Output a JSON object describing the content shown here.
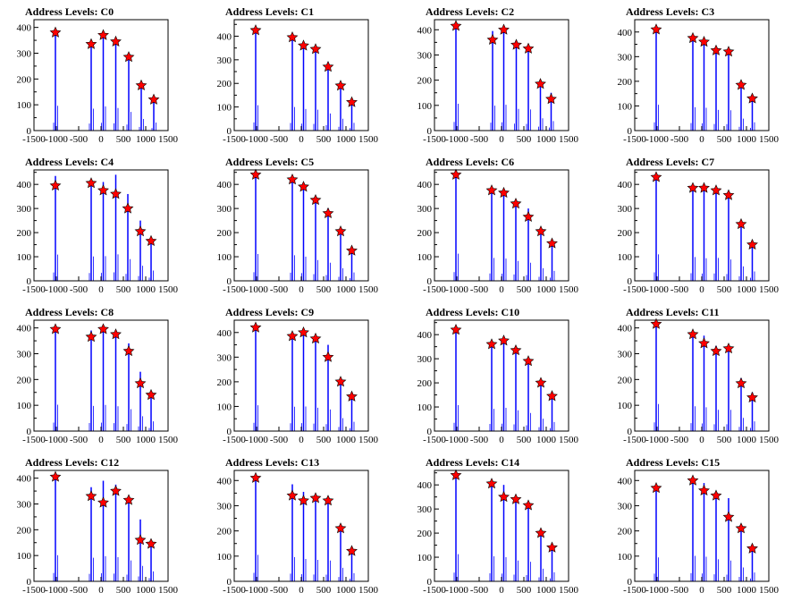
{
  "figure": {
    "xlim": [
      -1500,
      1500
    ],
    "x_ticks": [
      -1500,
      -1000,
      -500,
      0,
      500,
      1000,
      1500
    ],
    "x_tick_labels": [
      "-1500",
      "-1000",
      "-500",
      "0",
      "500",
      "1000",
      "1500"
    ],
    "colors": {
      "histogram": "#0000ff",
      "marker": "#ff0000",
      "frame": "#000000"
    },
    "marker_shape": "star-icon"
  },
  "chart_data": [
    {
      "type": "bar",
      "title": "Address Levels: C0",
      "ylim": [
        0,
        430
      ],
      "yticks": [
        0,
        100,
        200,
        300,
        400
      ],
      "x": [
        -1020,
        -220,
        50,
        330,
        620,
        900,
        1180
      ],
      "peaks": [
        385,
        340,
        375,
        350,
        290,
        180,
        125
      ],
      "markers": [
        380,
        335,
        370,
        345,
        285,
        175,
        120
      ]
    },
    {
      "type": "bar",
      "title": "Address Levels: C1",
      "ylim": [
        0,
        470
      ],
      "yticks": [
        0,
        100,
        200,
        300,
        400
      ],
      "x": [
        -1020,
        -200,
        50,
        320,
        600,
        880,
        1130
      ],
      "peaks": [
        430,
        400,
        365,
        355,
        290,
        200,
        130
      ],
      "markers": [
        425,
        395,
        360,
        345,
        270,
        190,
        120
      ]
    },
    {
      "type": "bar",
      "title": "Address Levels: C2",
      "ylim": [
        0,
        440
      ],
      "yticks": [
        0,
        100,
        200,
        300,
        400
      ],
      "x": [
        -1020,
        -200,
        50,
        330,
        600,
        870,
        1110
      ],
      "peaks": [
        425,
        395,
        410,
        345,
        335,
        195,
        150
      ],
      "markers": [
        415,
        360,
        400,
        340,
        325,
        185,
        125
      ]
    },
    {
      "type": "bar",
      "title": "Address Levels: C3",
      "ylim": [
        0,
        450
      ],
      "yticks": [
        0,
        100,
        200,
        300,
        400
      ],
      "x": [
        -1020,
        -200,
        50,
        320,
        600,
        880,
        1130
      ],
      "peaks": [
        420,
        380,
        370,
        335,
        330,
        195,
        135
      ],
      "markers": [
        410,
        375,
        360,
        325,
        320,
        185,
        130
      ]
    },
    {
      "type": "bar",
      "title": "Address Levels: C4",
      "ylim": [
        0,
        460
      ],
      "yticks": [
        0,
        100,
        200,
        300,
        400
      ],
      "x": [
        -1020,
        -220,
        50,
        330,
        600,
        880,
        1120
      ],
      "peaks": [
        435,
        405,
        410,
        440,
        360,
        250,
        170
      ],
      "markers": [
        395,
        405,
        375,
        360,
        300,
        205,
        165
      ]
    },
    {
      "type": "bar",
      "title": "Address Levels: C5",
      "ylim": [
        0,
        460
      ],
      "yticks": [
        0,
        100,
        200,
        300,
        400
      ],
      "x": [
        -1020,
        -200,
        50,
        320,
        600,
        880,
        1130
      ],
      "peaks": [
        445,
        425,
        400,
        345,
        300,
        210,
        140
      ],
      "markers": [
        440,
        420,
        390,
        335,
        280,
        205,
        125
      ]
    },
    {
      "type": "bar",
      "title": "Address Levels: C6",
      "ylim": [
        0,
        460
      ],
      "yticks": [
        0,
        100,
        200,
        300,
        400
      ],
      "x": [
        -1020,
        -220,
        50,
        320,
        600,
        880,
        1130
      ],
      "peaks": [
        450,
        380,
        370,
        330,
        300,
        210,
        165
      ],
      "markers": [
        440,
        375,
        365,
        320,
        265,
        205,
        155
      ]
    },
    {
      "type": "bar",
      "title": "Address Levels: C7",
      "ylim": [
        0,
        460
      ],
      "yticks": [
        0,
        100,
        200,
        300,
        400
      ],
      "x": [
        -1020,
        -200,
        50,
        320,
        600,
        880,
        1130
      ],
      "peaks": [
        440,
        395,
        375,
        380,
        355,
        240,
        155
      ],
      "markers": [
        430,
        385,
        385,
        375,
        355,
        235,
        150
      ]
    },
    {
      "type": "bar",
      "title": "Address Levels: C8",
      "ylim": [
        0,
        430
      ],
      "yticks": [
        0,
        100,
        200,
        300,
        400
      ],
      "x": [
        -1020,
        -220,
        50,
        330,
        620,
        880,
        1120
      ],
      "peaks": [
        410,
        390,
        405,
        385,
        340,
        230,
        150
      ],
      "markers": [
        395,
        365,
        395,
        375,
        310,
        185,
        140
      ]
    },
    {
      "type": "bar",
      "title": "Address Levels: C9",
      "ylim": [
        0,
        450
      ],
      "yticks": [
        0,
        100,
        200,
        300,
        400
      ],
      "x": [
        -1020,
        -200,
        50,
        320,
        600,
        880,
        1130
      ],
      "peaks": [
        420,
        395,
        400,
        380,
        350,
        210,
        150
      ],
      "markers": [
        420,
        385,
        400,
        375,
        300,
        200,
        140
      ]
    },
    {
      "type": "bar",
      "title": "Address Levels: C10",
      "ylim": [
        0,
        460
      ],
      "yticks": [
        0,
        100,
        200,
        300,
        400
      ],
      "x": [
        -1020,
        -220,
        50,
        320,
        600,
        880,
        1130
      ],
      "peaks": [
        430,
        370,
        385,
        345,
        300,
        205,
        150
      ],
      "markers": [
        420,
        360,
        375,
        335,
        290,
        200,
        145
      ]
    },
    {
      "type": "bar",
      "title": "Address Levels: C11",
      "ylim": [
        0,
        430
      ],
      "yticks": [
        0,
        100,
        200,
        300,
        400
      ],
      "x": [
        -1020,
        -200,
        50,
        320,
        600,
        880,
        1130
      ],
      "peaks": [
        420,
        385,
        370,
        330,
        330,
        205,
        150
      ],
      "markers": [
        415,
        375,
        340,
        310,
        320,
        185,
        130
      ]
    },
    {
      "type": "bar",
      "title": "Address Levels: C12",
      "ylim": [
        0,
        430
      ],
      "yticks": [
        0,
        100,
        200,
        300,
        400
      ],
      "x": [
        -1020,
        -220,
        50,
        330,
        620,
        880,
        1120
      ],
      "peaks": [
        405,
        365,
        390,
        375,
        325,
        240,
        155
      ],
      "markers": [
        405,
        330,
        305,
        350,
        315,
        160,
        145
      ]
    },
    {
      "type": "bar",
      "title": "Address Levels: C13",
      "ylim": [
        0,
        440
      ],
      "yticks": [
        0,
        100,
        200,
        300,
        400
      ],
      "x": [
        -1020,
        -200,
        50,
        320,
        600,
        880,
        1130
      ],
      "peaks": [
        420,
        385,
        355,
        340,
        330,
        215,
        130
      ],
      "markers": [
        410,
        340,
        320,
        330,
        320,
        210,
        120
      ]
    },
    {
      "type": "bar",
      "title": "Address Levels: C14",
      "ylim": [
        0,
        460
      ],
      "yticks": [
        0,
        100,
        200,
        300,
        400
      ],
      "x": [
        -1020,
        -220,
        50,
        320,
        600,
        880,
        1130
      ],
      "peaks": [
        450,
        415,
        400,
        345,
        325,
        210,
        150
      ],
      "markers": [
        440,
        405,
        350,
        340,
        315,
        200,
        140
      ]
    },
    {
      "type": "bar",
      "title": "Address Levels: C15",
      "ylim": [
        0,
        440
      ],
      "yticks": [
        0,
        100,
        200,
        300,
        400
      ],
      "x": [
        -1020,
        -200,
        50,
        320,
        600,
        880,
        1130
      ],
      "peaks": [
        380,
        405,
        390,
        350,
        330,
        220,
        140
      ],
      "markers": [
        370,
        400,
        360,
        340,
        255,
        210,
        130
      ]
    }
  ]
}
